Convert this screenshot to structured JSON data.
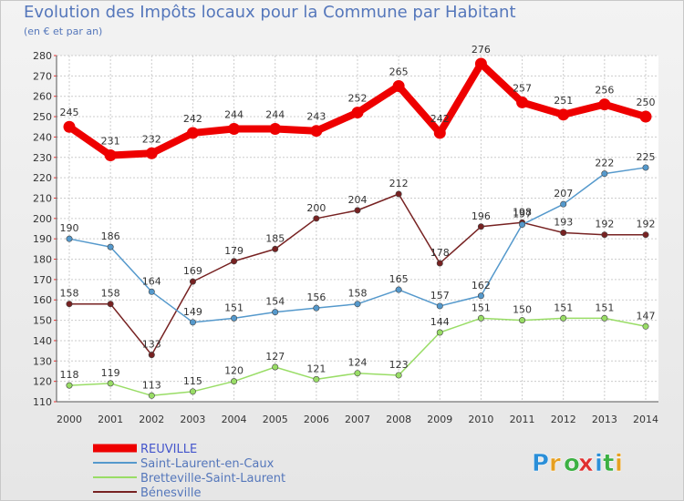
{
  "header": {
    "title": "Evolution des Impôts locaux pour la Commune par Habitant",
    "subtitle": "(en € et par an)"
  },
  "logo": {
    "letters": [
      "P",
      "r",
      "o",
      "x",
      "i",
      "t",
      "i"
    ],
    "colors": [
      "#2b8fd8",
      "#e6a020",
      "#3cb043",
      "#e03030",
      "#2b8fd8",
      "#3cb043",
      "#e6a020"
    ]
  },
  "chart_data": {
    "type": "line",
    "title": "Evolution des Impôts locaux pour la Commune par Habitant",
    "subtitle": "(en € et par an)",
    "xlabel": "",
    "ylabel": "",
    "x": [
      "2000",
      "2001",
      "2002",
      "2003",
      "2004",
      "2005",
      "2006",
      "2007",
      "2008",
      "2009",
      "2010",
      "2011",
      "2012",
      "2013",
      "2014"
    ],
    "ylim": [
      110,
      280
    ],
    "yticks": [
      110,
      120,
      130,
      140,
      150,
      160,
      170,
      180,
      190,
      200,
      210,
      220,
      230,
      240,
      250,
      260,
      270,
      280
    ],
    "grid": true,
    "legend_position": "bottom-left",
    "series": [
      {
        "name": "REUVILLE",
        "color": "#ee0000",
        "values": [
          245,
          231,
          232,
          242,
          244,
          244,
          243,
          252,
          265,
          242,
          276,
          257,
          251,
          256,
          250
        ],
        "labels": [
          "245",
          "231",
          "232",
          "242",
          "244",
          "244",
          "243",
          "252",
          "265",
          "242",
          "276",
          "257",
          "251",
          "256",
          "250"
        ]
      },
      {
        "name": "Saint-Laurent-en-Caux",
        "color": "#5599cc",
        "values": [
          190,
          186,
          164,
          149,
          151,
          154,
          156,
          158,
          165,
          157,
          162,
          197,
          207,
          222,
          225
        ],
        "labels": [
          "190",
          "186",
          "164",
          "149",
          "151",
          "154",
          "156",
          "158",
          "165",
          "157",
          "162",
          "197",
          "207",
          "222",
          "225"
        ]
      },
      {
        "name": "Bretteville-Saint-Laurent",
        "color": "#99dd66",
        "values": [
          118,
          119,
          113,
          115,
          120,
          127,
          121,
          124,
          123,
          144,
          151,
          150,
          151,
          151,
          147
        ],
        "labels": [
          "118",
          "119",
          "113",
          "115",
          "120",
          "127",
          "121",
          "124",
          "123",
          "144",
          "151",
          "150",
          "151",
          "151",
          "147"
        ]
      },
      {
        "name": "Bénesville",
        "color": "#772222",
        "values": [
          158,
          158,
          133,
          169,
          179,
          185,
          200,
          204,
          212,
          178,
          196,
          198,
          193,
          192,
          192
        ],
        "labels": [
          "158",
          "158",
          "133",
          "169",
          "179",
          "185",
          "200",
          "204",
          "212",
          "178",
          "196",
          "198",
          "193",
          "192",
          "192"
        ]
      }
    ]
  }
}
